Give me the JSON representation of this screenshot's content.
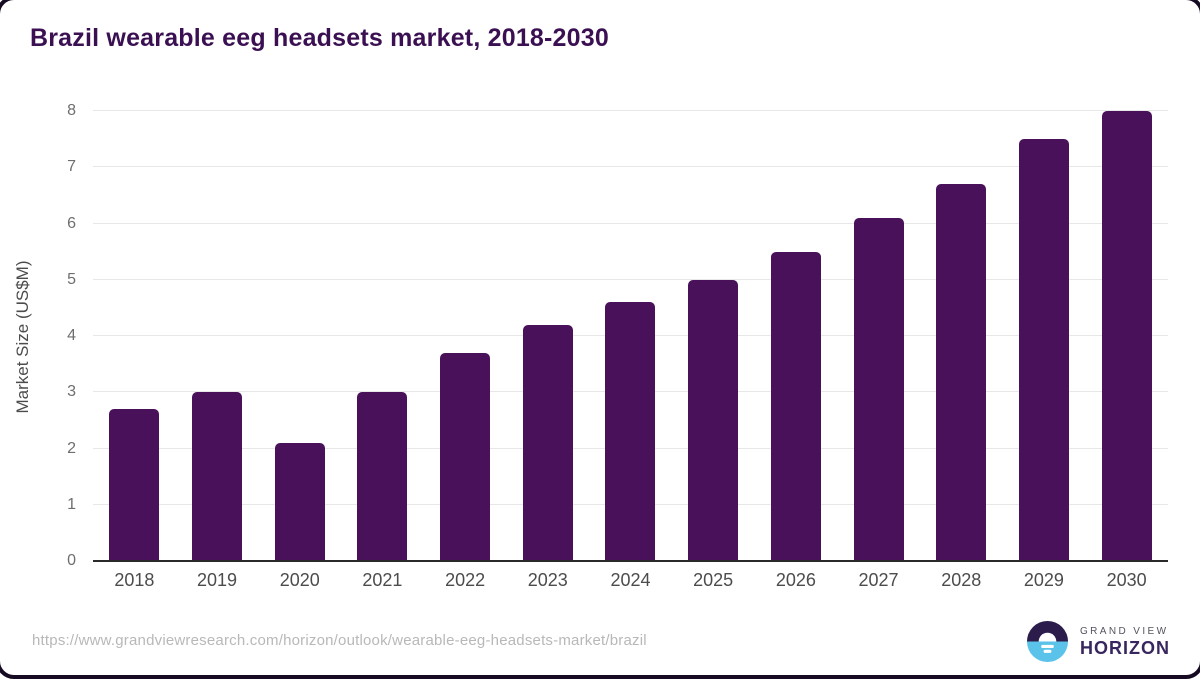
{
  "title": "Brazil wearable eeg headsets market, 2018-2030",
  "chart_data": {
    "type": "bar",
    "title": "Brazil wearable eeg headsets market, 2018-2030",
    "categories": [
      "2018",
      "2019",
      "2020",
      "2021",
      "2022",
      "2023",
      "2024",
      "2025",
      "2026",
      "2027",
      "2028",
      "2029",
      "2030"
    ],
    "values": [
      2.7,
      3.0,
      2.1,
      3.0,
      3.7,
      4.2,
      4.6,
      5.0,
      5.5,
      6.1,
      6.7,
      7.5,
      8.0
    ],
    "xlabel": "",
    "ylabel": "Market Size (US$M)",
    "ylim": [
      0,
      8
    ],
    "yticks": [
      0,
      1,
      2,
      3,
      4,
      5,
      6,
      7,
      8
    ],
    "grid": true,
    "legend": "none",
    "bar_color": "#49115a"
  },
  "colors": {
    "title": "#3b1052",
    "bar": "#49115a",
    "gridline": "#e7e7e7",
    "axis_line": "#2a2a2a",
    "tick_label": "#6e6e6e",
    "logo_dark": "#2c1c4c",
    "logo_blue": "#5bc2ea"
  },
  "footer": {
    "source_url": "https://www.grandviewresearch.com/horizon/outlook/wearable-eeg-headsets-market/brazil",
    "logo_top": "GRAND VIEW",
    "logo_bottom": "HORIZON"
  }
}
